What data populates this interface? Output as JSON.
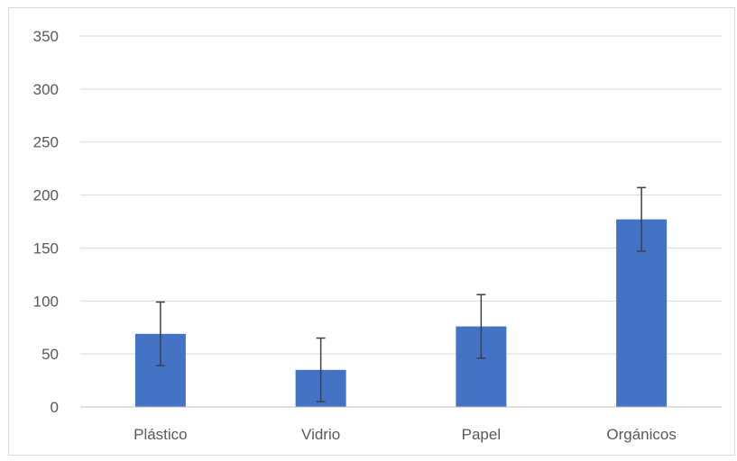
{
  "chart_data": {
    "type": "bar",
    "categories": [
      "Plástico",
      "Vidrio",
      "Papel",
      "Orgánicos"
    ],
    "values": [
      69,
      35,
      76,
      177
    ],
    "error_bars": {
      "plus": [
        30,
        30,
        30,
        30
      ],
      "minus": [
        30,
        30,
        30,
        30
      ]
    },
    "ylim": [
      0,
      350
    ],
    "yticks": [
      0,
      50,
      100,
      150,
      200,
      250,
      300,
      350
    ],
    "grid": true,
    "legend": "none",
    "colors": {
      "bar": "#4472c4",
      "error_bar": "#404040",
      "grid": "#d9d9d9",
      "axis": "#bfbfbf",
      "text": "#595959"
    }
  }
}
